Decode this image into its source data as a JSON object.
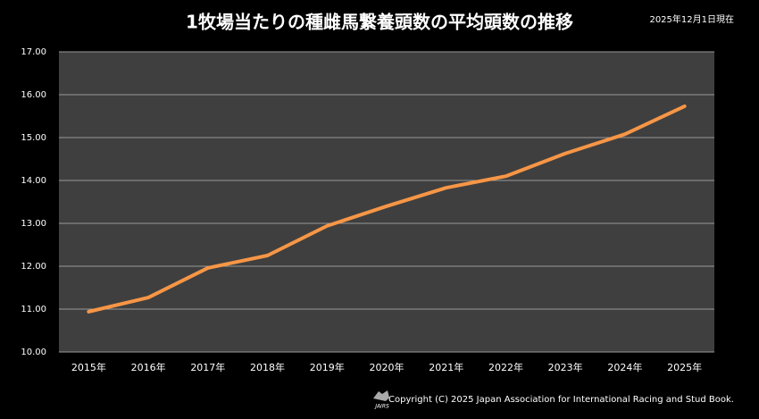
{
  "chart_data": {
    "type": "line",
    "title": "1牧場当たりの種雌馬繋養頭数の平均頭数の推移",
    "subtitle": "2025年12月1日現在",
    "footer": "Copyright (C) 2025  Japan Association for International Racing and Stud Book.",
    "logo_text": "JAIRS",
    "categories": [
      "2015年",
      "2016年",
      "2017年",
      "2018年",
      "2019年",
      "2020年",
      "2021年",
      "2022年",
      "2023年",
      "2024年",
      "2025年"
    ],
    "series": [
      {
        "color": "#f79646",
        "values": [
          10.94,
          11.27,
          11.96,
          12.25,
          12.94,
          13.4,
          13.83,
          14.1,
          14.63,
          15.08,
          15.73
        ]
      }
    ],
    "ylim": [
      10,
      17
    ],
    "yticks": [
      {
        "value": 10,
        "label": "10.00"
      },
      {
        "value": 11,
        "label": "11.00"
      },
      {
        "value": 12,
        "label": "12.00"
      },
      {
        "value": 13,
        "label": "13.00"
      },
      {
        "value": 14,
        "label": "14.00"
      },
      {
        "value": 15,
        "label": "15.00"
      },
      {
        "value": 16,
        "label": "16.00"
      },
      {
        "value": 17,
        "label": "17.00"
      }
    ],
    "grid": true
  }
}
